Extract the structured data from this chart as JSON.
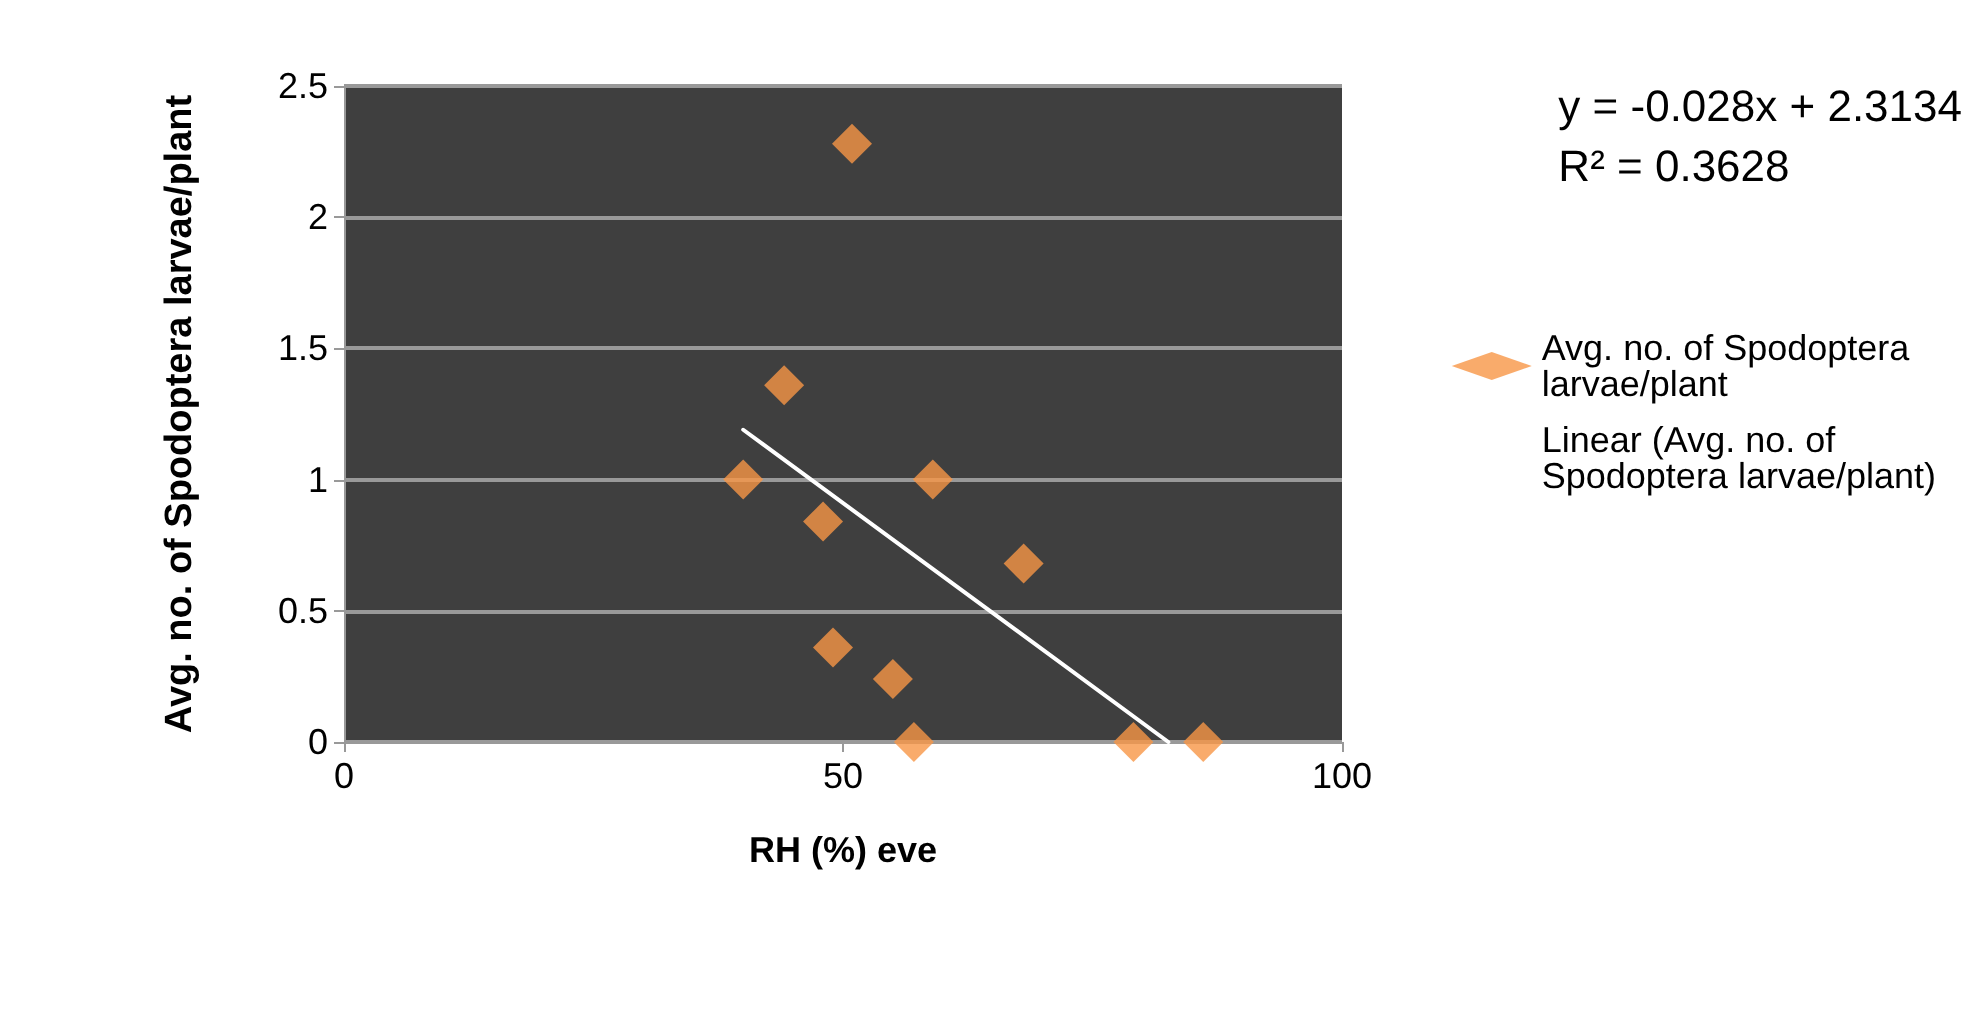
{
  "chart_data": {
    "type": "scatter",
    "xlabel": "RH (%) eve",
    "ylabel": "Avg. no. of Spodoptera larvae/plant",
    "xlim": [
      0,
      100
    ],
    "xticks": [
      0,
      50,
      100
    ],
    "ylim": [
      0,
      2.5
    ],
    "yticks": [
      0,
      0.5,
      1,
      1.5,
      2,
      2.5
    ],
    "grid": "y",
    "legend": "right",
    "marker": "diamond",
    "annotations": [
      "y = -0.028x + 2.3134\nR² = 0.3628"
    ],
    "series": [
      {
        "name": "Avg. no. of Spodoptera larvae/plant",
        "color": "#f79646",
        "x": [
          50.9,
          44.1,
          40.0,
          59.0,
          48.0,
          68.1,
          49.0,
          55.0,
          57.1,
          79.1,
          86.1
        ],
        "values": [
          2.28,
          1.36,
          1.0,
          1.0,
          0.84,
          0.68,
          0.36,
          0.24,
          0,
          0,
          0
        ]
      },
      {
        "name": "Linear (Avg. no. of Spodoptera larvae/plant)",
        "type": "line",
        "color": "#ffffff",
        "marker": "none",
        "x": [
          40,
          82.6
        ],
        "values": [
          1.19,
          0
        ]
      }
    ]
  }
}
